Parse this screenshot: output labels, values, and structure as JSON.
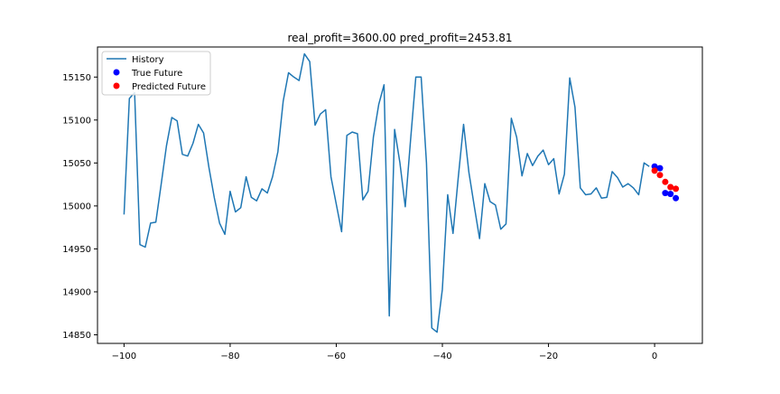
{
  "chart_data": {
    "type": "line",
    "title": "real_profit=3600.00 pred_profit=2453.81",
    "xlabel": "",
    "ylabel": "",
    "xlim": [
      -105,
      9
    ],
    "ylim": [
      14840,
      15185
    ],
    "xticks": [
      -100,
      -80,
      -60,
      -40,
      -20,
      0
    ],
    "xtick_labels": [
      "−100",
      "−80",
      "−60",
      "−40",
      "−20",
      "0"
    ],
    "yticks": [
      14850,
      14900,
      14950,
      15000,
      15050,
      15100,
      15150
    ],
    "ytick_labels": [
      "14850",
      "14900",
      "14950",
      "15000",
      "15050",
      "15100",
      "15150"
    ],
    "grid": false,
    "legend_position": "top-left",
    "colors": {
      "history": "#1f77b4",
      "true_future": "#0000ff",
      "predicted_future": "#ff0000"
    },
    "series": [
      {
        "name": "History",
        "kind": "line",
        "x": [
          -100,
          -99,
          -98,
          -97,
          -96,
          -95,
          -94,
          -93,
          -92,
          -91,
          -90,
          -89,
          -88,
          -87,
          -86,
          -85,
          -84,
          -83,
          -82,
          -81,
          -80,
          -79,
          -78,
          -77,
          -76,
          -75,
          -74,
          -73,
          -72,
          -71,
          -70,
          -69,
          -68,
          -67,
          -66,
          -65,
          -64,
          -63,
          -62,
          -61,
          -60,
          -59,
          -58,
          -57,
          -56,
          -55,
          -54,
          -53,
          -52,
          -51,
          -50,
          -49,
          -48,
          -47,
          -46,
          -45,
          -44,
          -43,
          -42,
          -41,
          -40,
          -39,
          -38,
          -37,
          -36,
          -35,
          -34,
          -33,
          -32,
          -31,
          -30,
          -29,
          -28,
          -27,
          -26,
          -25,
          -24,
          -23,
          -22,
          -21,
          -20,
          -19,
          -18,
          -17,
          -16,
          -15,
          -14,
          -13,
          -12,
          -11,
          -10,
          -9,
          -8,
          -7,
          -6,
          -5,
          -4,
          -3,
          -2,
          -1
        ],
        "y": [
          14990,
          15125,
          15132,
          14955,
          14952,
          14980,
          14981,
          15025,
          15070,
          15103,
          15099,
          15060,
          15058,
          15073,
          15095,
          15085,
          15045,
          15010,
          14980,
          14967,
          15017,
          14993,
          14998,
          15034,
          15010,
          15006,
          15020,
          15015,
          15034,
          15063,
          15122,
          15155,
          15150,
          15146,
          15177,
          15168,
          15094,
          15107,
          15112,
          15034,
          15002,
          14970,
          15082,
          15086,
          15084,
          15007,
          15017,
          15080,
          15118,
          15141,
          14872,
          15089,
          15050,
          14999,
          15077,
          15150,
          15150,
          15050,
          14858,
          14853,
          14903,
          15013,
          14968,
          15033,
          15095,
          15039,
          15000,
          14962,
          15026,
          15005,
          15001,
          14973,
          14979,
          15102,
          15080,
          15035,
          15061,
          15047,
          15058,
          15065,
          15048,
          15055,
          15014,
          15037,
          15149,
          15115,
          15021,
          15013,
          15014,
          15021,
          15009,
          15010,
          15040,
          15033,
          15022,
          15026,
          15021,
          15013,
          15050,
          15046
        ]
      },
      {
        "name": "True Future",
        "kind": "scatter",
        "x": [
          0,
          1,
          2,
          3,
          4
        ],
        "y": [
          15046,
          15044,
          15015,
          15014,
          15009
        ]
      },
      {
        "name": "Predicted Future",
        "kind": "scatter",
        "x": [
          0,
          1,
          2,
          3,
          4
        ],
        "y": [
          15041,
          15036,
          15028,
          15022,
          15020
        ]
      }
    ]
  }
}
